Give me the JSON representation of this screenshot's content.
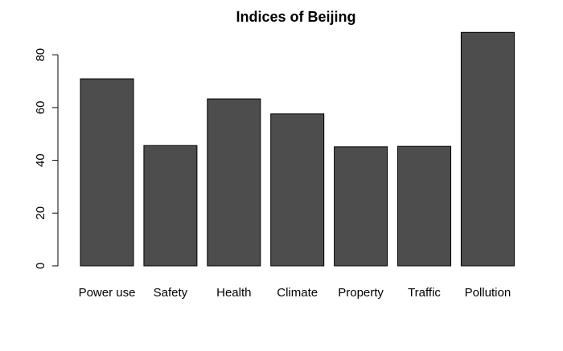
{
  "chart_data": {
    "type": "bar",
    "title": "Indices of Beijing",
    "xlabel": "",
    "ylabel": "",
    "categories": [
      "Power use",
      "Safety",
      "Health",
      "Climate",
      "Property",
      "Traffic",
      "Pollution"
    ],
    "values": [
      70.9,
      45.6,
      63.3,
      57.6,
      45.1,
      45.3,
      88.5
    ],
    "yticks": [
      0,
      20,
      40,
      60,
      80
    ],
    "ylim": [
      0,
      90
    ],
    "bar_color": "#4d4d4d",
    "grid": false,
    "legend": "none"
  }
}
